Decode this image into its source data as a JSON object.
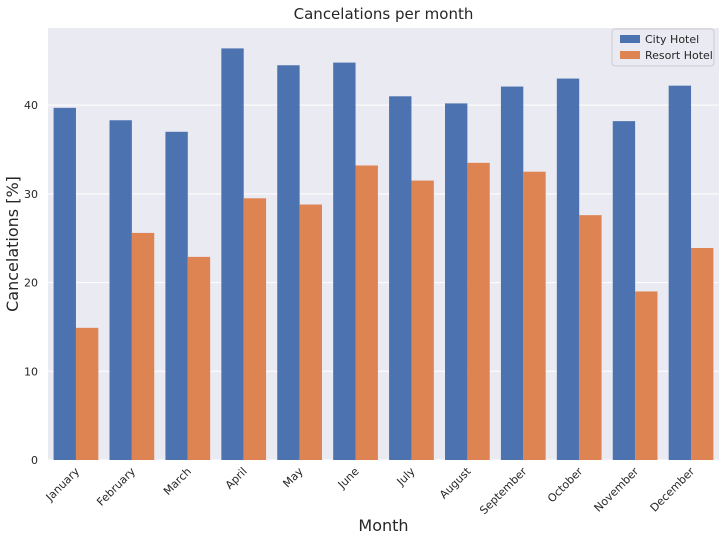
{
  "chart_data": {
    "type": "bar",
    "title": "Cancelations per month",
    "xlabel": "Month",
    "ylabel": "Cancelations [%]",
    "categories": [
      "January",
      "February",
      "March",
      "April",
      "May",
      "June",
      "July",
      "August",
      "September",
      "October",
      "November",
      "December"
    ],
    "series": [
      {
        "name": "City Hotel",
        "color": "#4c72b0",
        "values": [
          39.7,
          38.3,
          37.0,
          46.4,
          44.5,
          44.8,
          41.0,
          40.2,
          42.1,
          43.0,
          38.2,
          42.2
        ]
      },
      {
        "name": "Resort Hotel",
        "color": "#dd8452",
        "values": [
          14.9,
          25.6,
          22.9,
          29.5,
          28.8,
          33.2,
          31.5,
          33.5,
          32.5,
          27.6,
          19.0,
          23.9
        ]
      }
    ],
    "ylim": [
      0,
      48.7
    ],
    "yticks": [
      0,
      10,
      20,
      30,
      40
    ],
    "grid": true,
    "legend_position": "top-right",
    "background": "#eaeaf2",
    "grid_color": "#ffffff"
  }
}
